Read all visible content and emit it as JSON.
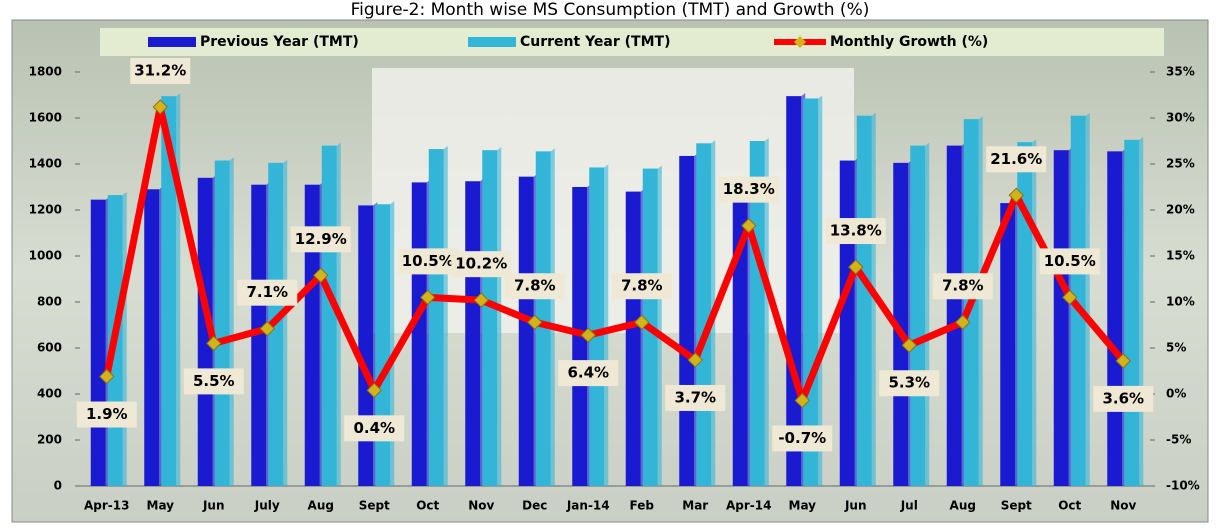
{
  "chart_data": {
    "type": "bar_line",
    "title": "Figure-2: Month wise MS Consumption (TMT) and Growth (%)",
    "categories": [
      "Apr-13",
      "May",
      "Jun",
      "July",
      "Aug",
      "Sept",
      "Oct",
      "Nov",
      "Dec",
      "Jan-14",
      "Feb",
      "Mar",
      "Apr-14",
      "May",
      "Jun",
      "Jul",
      "Aug",
      "Sept",
      "Oct",
      "Nov"
    ],
    "series": [
      {
        "name": "Previous Year (TMT)",
        "color": "#1a1ad0",
        "type": "bar",
        "values": [
          1245,
          1290,
          1340,
          1310,
          1310,
          1220,
          1320,
          1325,
          1345,
          1300,
          1280,
          1435,
          1270,
          1695,
          1415,
          1405,
          1480,
          1230,
          1460,
          1455
        ]
      },
      {
        "name": "Current Year (TMT)",
        "color": "#33b5d8",
        "type": "bar",
        "values": [
          1265,
          1695,
          1415,
          1405,
          1480,
          1225,
          1465,
          1460,
          1455,
          1385,
          1380,
          1490,
          1500,
          1685,
          1610,
          1480,
          1595,
          1495,
          1610,
          1505
        ]
      },
      {
        "name": "Monthly Growth (%)",
        "color": "#ff0000",
        "type": "line",
        "axis": "y2",
        "values": [
          1.9,
          31.2,
          5.5,
          7.1,
          12.9,
          0.4,
          10.5,
          10.2,
          7.8,
          6.4,
          7.8,
          3.7,
          18.3,
          -0.7,
          13.8,
          5.3,
          7.8,
          21.6,
          10.5,
          3.6
        ],
        "value_labels": [
          "1.9%",
          "31.2%",
          "5.5%",
          "7.1%",
          "12.9%",
          "0.4%",
          "10.5%",
          "10.2%",
          "7.8%",
          "6.4%",
          "7.8%",
          "3.7%",
          "18.3%",
          "-0.7%",
          "13.8%",
          "5.3%",
          "7.8%",
          "21.6%",
          "10.5%",
          "3.6%"
        ]
      }
    ],
    "ylim": [
      0,
      1800
    ],
    "yticks": [
      0,
      200,
      400,
      600,
      800,
      1000,
      1200,
      1400,
      1600,
      1800
    ],
    "y2lim": [
      -10,
      35
    ],
    "y2ticks": [
      {
        "value": -10,
        "label": "-10%"
      },
      {
        "value": -5,
        "label": "-5%"
      },
      {
        "value": 0,
        "label": "0%"
      },
      {
        "value": 5,
        "label": "5%"
      },
      {
        "value": 10,
        "label": "10%"
      },
      {
        "value": 15,
        "label": "15%"
      },
      {
        "value": 20,
        "label": "20%"
      },
      {
        "value": 25,
        "label": "25%"
      },
      {
        "value": 30,
        "label": "30%"
      },
      {
        "value": 35,
        "label": "35%"
      }
    ],
    "legend": "top",
    "grid": false
  }
}
